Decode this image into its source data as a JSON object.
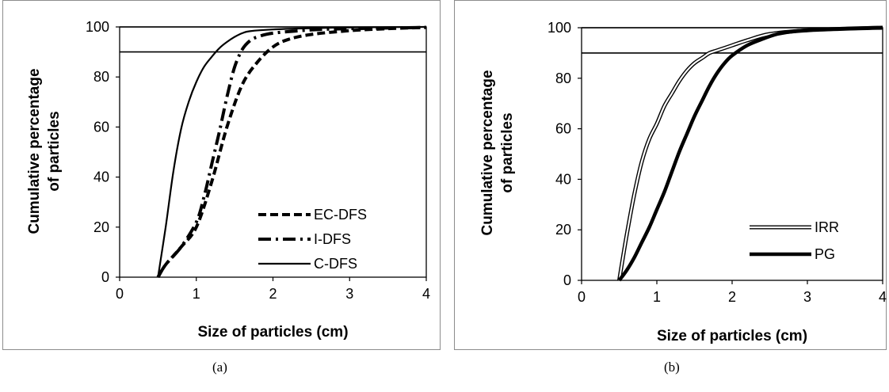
{
  "captions": {
    "a": "(a)",
    "b": "(b)"
  },
  "chart_data": [
    {
      "type": "line",
      "panel": "a",
      "xlabel": "Size of particles (cm)",
      "ylabel_lines": [
        "Cumulative percentage",
        "of particles"
      ],
      "xlim": [
        0,
        4
      ],
      "ylim": [
        0,
        100
      ],
      "xticks": [
        0,
        1,
        2,
        3,
        4
      ],
      "yticks": [
        0,
        20,
        40,
        60,
        80,
        100
      ],
      "reference_lines": [
        90,
        100
      ],
      "legend_position": "bottom-right",
      "series": [
        {
          "name": "EC-DFS",
          "style": "dashed",
          "color": "#000000",
          "x": [
            0.5,
            0.6,
            0.8,
            1.0,
            1.2,
            1.4,
            1.6,
            1.8,
            2.0,
            2.2,
            2.5,
            3.0,
            3.5,
            4.0
          ],
          "y": [
            0,
            5,
            12,
            20,
            38,
            60,
            77,
            86,
            92,
            95,
            97,
            98.5,
            99.3,
            99.8
          ]
        },
        {
          "name": "I-DFS",
          "style": "dash-dot",
          "color": "#000000",
          "x": [
            0.5,
            0.6,
            0.8,
            1.0,
            1.1,
            1.2,
            1.3,
            1.4,
            1.5,
            1.6,
            1.7,
            1.8,
            2.0,
            2.5,
            3.0,
            4.0
          ],
          "y": [
            0,
            5,
            12,
            22,
            32,
            45,
            58,
            72,
            84,
            91,
            94.5,
            96,
            97.5,
            98.8,
            99.3,
            99.8
          ]
        },
        {
          "name": "C-DFS",
          "style": "solid",
          "color": "#000000",
          "x": [
            0.5,
            0.6,
            0.7,
            0.8,
            0.9,
            1.0,
            1.1,
            1.2,
            1.3,
            1.4,
            1.5,
            1.6,
            1.7,
            2.0,
            2.5,
            3.0,
            4.0
          ],
          "y": [
            0,
            20,
            42,
            59,
            70,
            78,
            84,
            88,
            91.5,
            94,
            96,
            97.5,
            98.3,
            99,
            99.5,
            99.8,
            100
          ]
        }
      ]
    },
    {
      "type": "line",
      "panel": "b",
      "xlabel": "Size of particles (cm)",
      "ylabel_lines": [
        "Cumulative percentage",
        "of particles"
      ],
      "xlim": [
        0,
        4
      ],
      "ylim": [
        0,
        100
      ],
      "xticks": [
        0,
        1,
        2,
        3,
        4
      ],
      "yticks": [
        0,
        20,
        40,
        60,
        80,
        100
      ],
      "reference_lines": [
        90,
        100
      ],
      "legend_position": "bottom-right",
      "series": [
        {
          "name": "IRR",
          "style": "double",
          "color": "#000000",
          "x": [
            0.5,
            0.6,
            0.7,
            0.8,
            0.9,
            1.0,
            1.1,
            1.2,
            1.3,
            1.4,
            1.5,
            1.6,
            1.7,
            1.8,
            2.0,
            2.2,
            2.5,
            3.0,
            3.5,
            4.0
          ],
          "y": [
            0,
            18,
            34,
            47,
            56,
            62,
            69,
            74,
            79,
            83,
            86,
            88,
            90,
            91,
            93,
            95,
            97.5,
            99,
            99.6,
            100
          ]
        },
        {
          "name": "PG",
          "style": "thick",
          "color": "#000000",
          "x": [
            0.5,
            0.6,
            0.7,
            0.8,
            0.9,
            1.0,
            1.1,
            1.2,
            1.3,
            1.4,
            1.5,
            1.6,
            1.7,
            1.8,
            1.9,
            2.0,
            2.2,
            2.4,
            2.6,
            2.8,
            3.0,
            3.5,
            4.0
          ],
          "y": [
            0,
            4,
            9,
            15,
            21,
            28,
            35,
            43,
            51,
            58,
            65,
            71,
            77,
            82,
            86,
            89,
            93,
            95.5,
            97.5,
            98.5,
            99,
            99.6,
            100
          ]
        }
      ]
    }
  ]
}
